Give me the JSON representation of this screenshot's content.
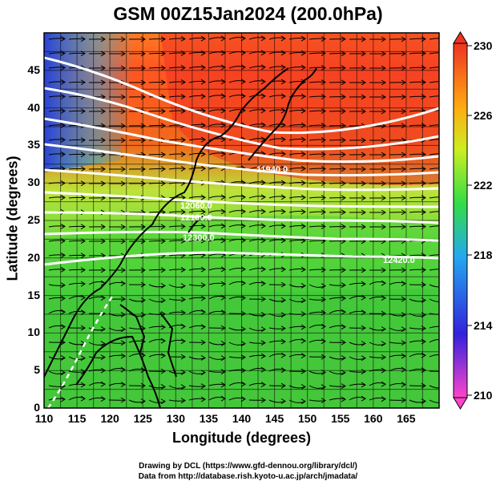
{
  "title": "GSM 00Z15Jan2024 (200.0hPa)",
  "xlabel": "Longitude (degrees)",
  "ylabel": "Latitude (degrees)",
  "x_ticks": [
    "110",
    "115",
    "120",
    "125",
    "130",
    "135",
    "140",
    "145",
    "150",
    "155",
    "160",
    "165"
  ],
  "y_ticks": [
    "0",
    "5",
    "10",
    "15",
    "20",
    "25",
    "30",
    "35",
    "40",
    "45"
  ],
  "colorbar": {
    "ticks": [
      "230",
      "226",
      "222",
      "218",
      "214",
      "210"
    ],
    "range": [
      210,
      230
    ],
    "colors": [
      "#ff44cc",
      "#3322dd",
      "#22aaee",
      "#33dd44",
      "#ccee22",
      "#ffaa11",
      "#ee3322"
    ]
  },
  "credits": {
    "line1": "Drawing by DCL (https://www.gfd-dennou.org/library/dcl/)",
    "line2": "Data from http://database.rish.kyoto-u.ac.jp/arch/jmadata/"
  },
  "contour_labels": [
    "11940.0",
    "12060.0",
    "12180.0",
    "12300.0",
    "12420.0"
  ],
  "chart_data": {
    "type": "heatmap",
    "title": "GSM 00Z15Jan2024 (200.0hPa)",
    "xlabel": "Longitude (degrees)",
    "ylabel": "Latitude (degrees)",
    "xlim": [
      110,
      170
    ],
    "ylim": [
      0,
      50
    ],
    "color_variable_range": [
      210,
      230
    ],
    "overlays": [
      "wind streamlines",
      "geopotential height contours (white)",
      "coastlines"
    ]
  }
}
